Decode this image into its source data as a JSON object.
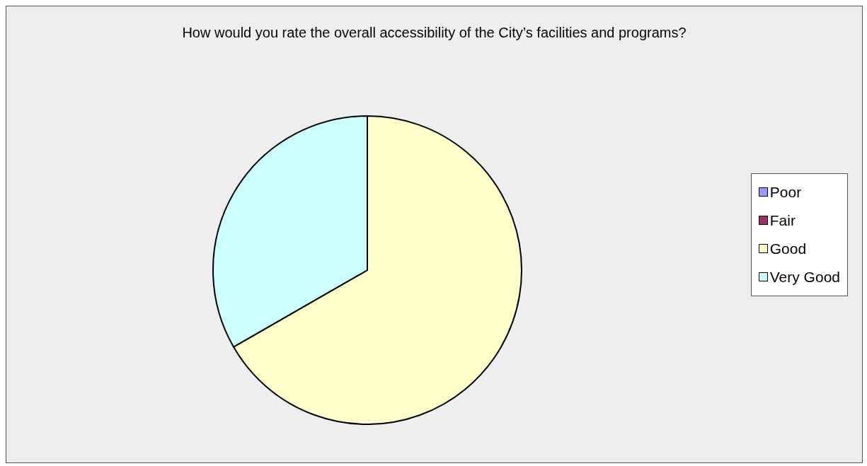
{
  "chart_data": {
    "type": "pie",
    "title": "How would you rate the overall accessibility of the City’s facilities and programs?",
    "categories": [
      "Poor",
      "Fair",
      "Good",
      "Very Good"
    ],
    "values": [
      0,
      0,
      66.7,
      33.3
    ],
    "colors": [
      "#9999ff",
      "#993366",
      "#ffffcc",
      "#ccffff"
    ],
    "legend": "right"
  }
}
